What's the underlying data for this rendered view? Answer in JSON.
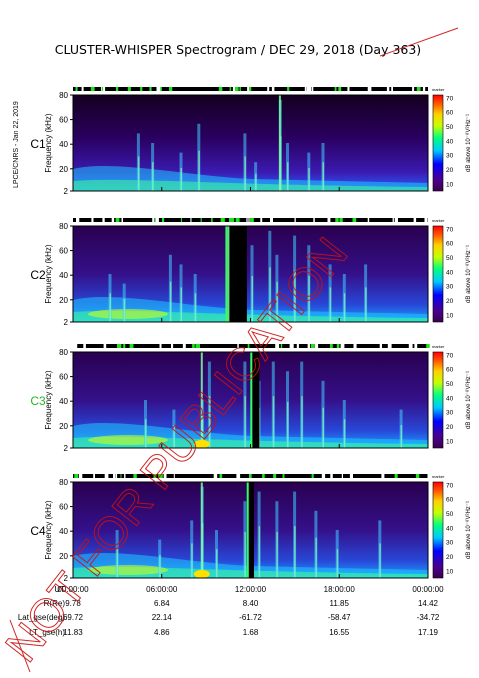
{
  "figure": {
    "title": "CLUSTER-WHISPER Spectrogram / DEC 29, 2018 (Day 363)",
    "side_label": "LPCE/CNRS - Jan 22, 2019",
    "watermark": "NOT FOR PUBLICATION"
  },
  "chart_data": {
    "type": "heatmap",
    "ylabel": "Frequency (kHz)",
    "ylim": [
      2,
      80
    ],
    "yticks": [
      "80",
      "60",
      "40",
      "20",
      "2"
    ],
    "x_ticks": [
      "00:00:00",
      "06:00:00",
      "12:00:00",
      "18:00:00",
      "00:00:00"
    ],
    "colorbar": {
      "label": "dB above 10⁻⁸V²Hz⁻¹",
      "ticks": [
        "70",
        "60",
        "50",
        "40",
        "30",
        "20",
        "10"
      ],
      "range": [
        5,
        72
      ],
      "marker": "marker"
    },
    "panels": [
      {
        "name": "C1",
        "color": "#000000"
      },
      {
        "name": "C2",
        "color": "#000000"
      },
      {
        "name": "C3",
        "color": "#22bb22"
      },
      {
        "name": "C4",
        "color": "#000000"
      }
    ]
  },
  "ephemeris": {
    "rows": [
      {
        "label": "UT",
        "values": [
          "00:00:00",
          "06:00:00",
          "12:00:00",
          "18:00:00",
          "00:00:00"
        ]
      },
      {
        "label": "R(Re)",
        "values": [
          "9.78",
          "6.84",
          "8.40",
          "11.85",
          "14.42"
        ]
      },
      {
        "label": "Lat_gse(deg)",
        "values": [
          "69.72",
          "22.14",
          "-61.72",
          "-58.47",
          "-34.72"
        ]
      },
      {
        "label": "LT_gse(h)",
        "values": [
          "11.83",
          "4.86",
          "1.68",
          "16.55",
          "17.19"
        ]
      }
    ]
  }
}
